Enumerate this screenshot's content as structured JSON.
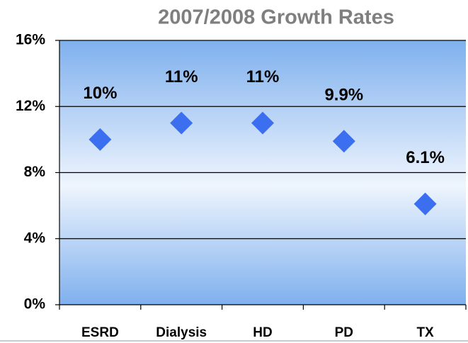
{
  "chart_data": {
    "type": "scatter",
    "title": "2007/2008 Growth Rates",
    "categories": [
      "ESRD",
      "Dialysis",
      "HD",
      "PD",
      "TX"
    ],
    "values": [
      10,
      11,
      11,
      9.9,
      6.1
    ],
    "value_labels": [
      "10%",
      "11%",
      "11%",
      "9.9%",
      "6.1%"
    ],
    "color": "#3c6ef0",
    "ylim": [
      0,
      16
    ],
    "yticks": [
      {
        "value": 0,
        "label": "0%"
      },
      {
        "value": 4,
        "label": "4%"
      },
      {
        "value": 8,
        "label": "8%"
      },
      {
        "value": 12,
        "label": "12%"
      },
      {
        "value": 16,
        "label": "16%"
      }
    ],
    "grid": true
  }
}
